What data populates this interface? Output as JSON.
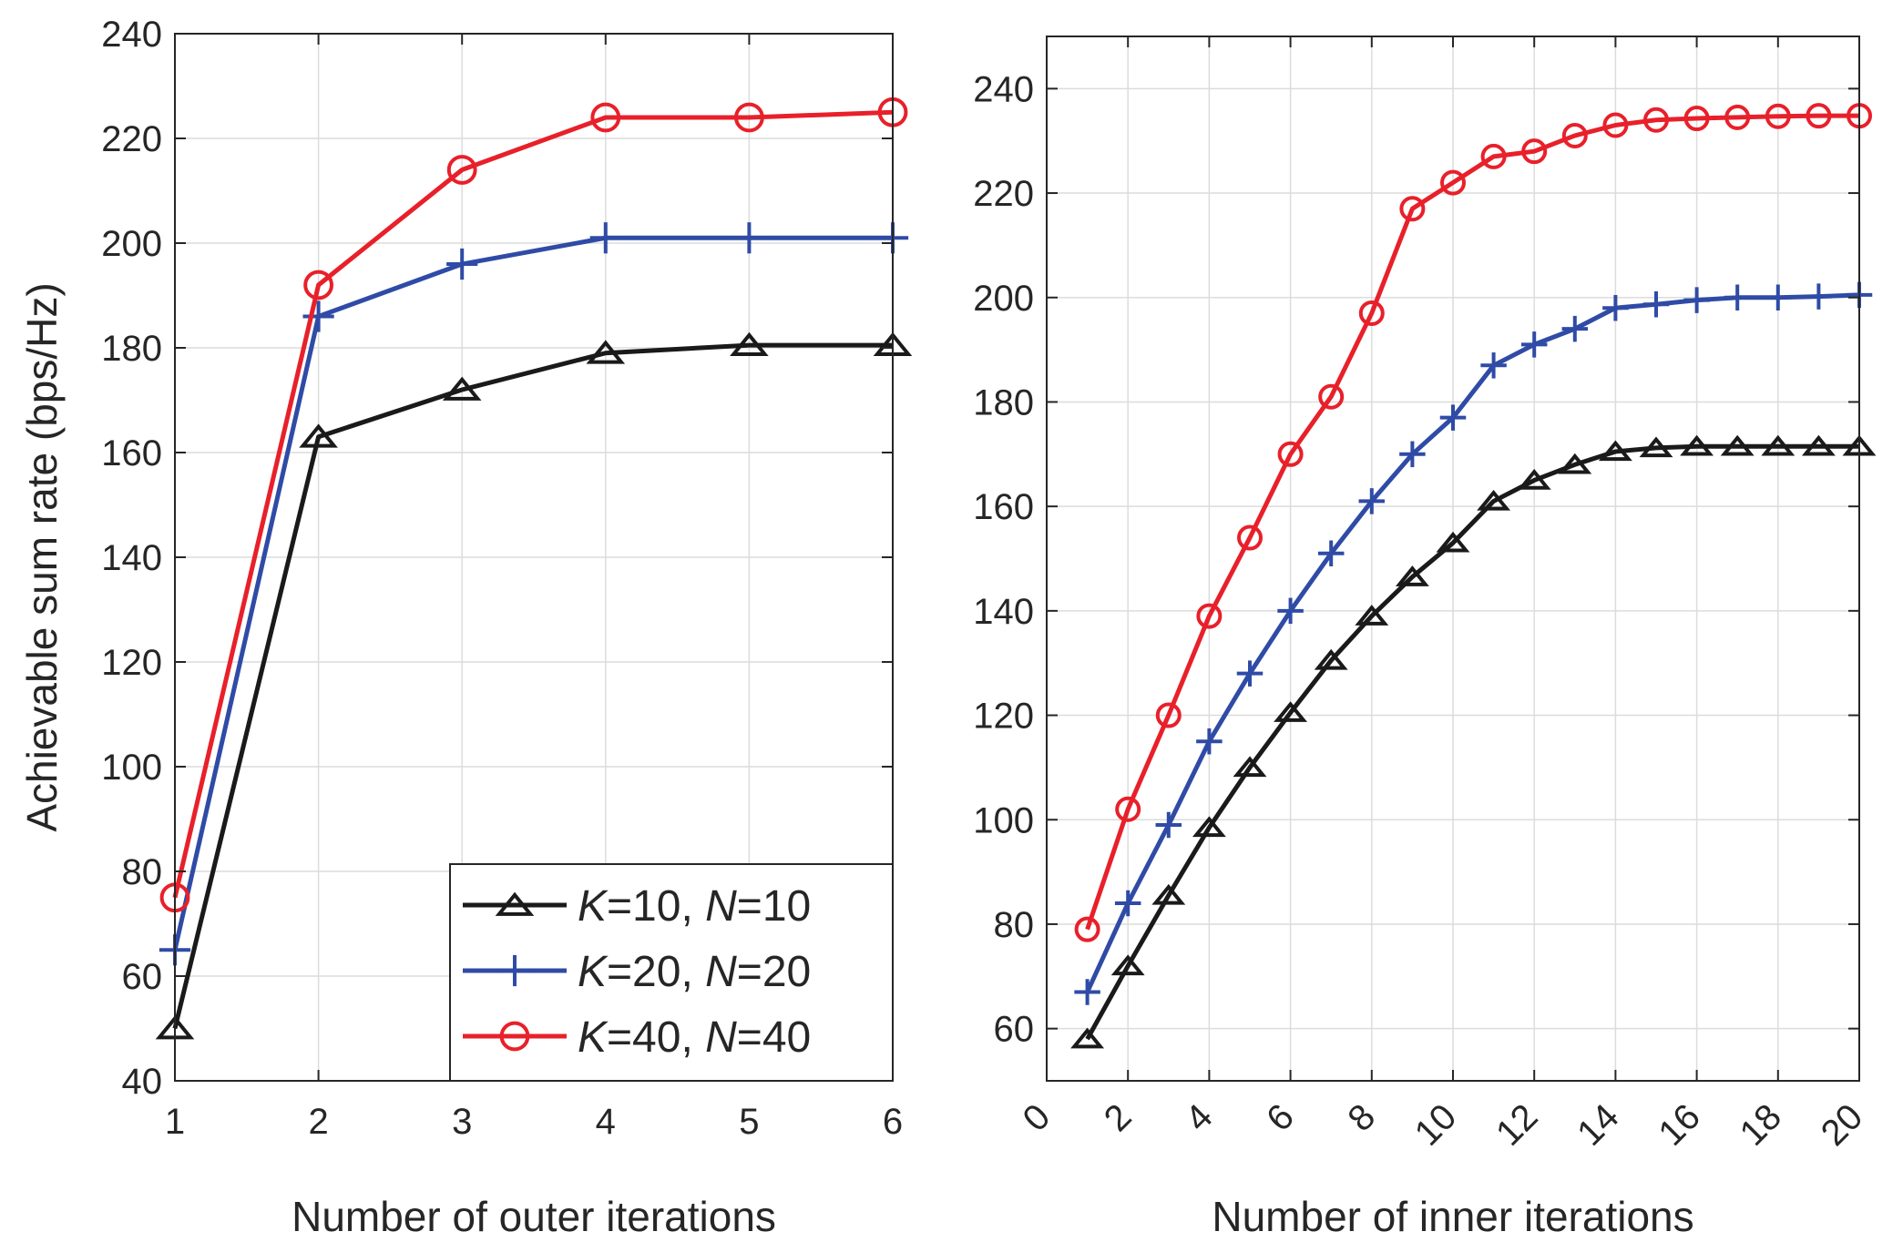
{
  "chart_data": [
    {
      "type": "line",
      "xlabel": "Number of outer iterations",
      "ylabel": "Achievable sum rate (bps/Hz)",
      "xlim": [
        1,
        6
      ],
      "ylim": [
        40,
        240
      ],
      "xticks": [
        1,
        2,
        3,
        4,
        5,
        6
      ],
      "xtick_labels": [
        "1",
        "2",
        "3",
        "4",
        "5",
        "6"
      ],
      "yticks": [
        40,
        60,
        80,
        100,
        120,
        140,
        160,
        180,
        200,
        220,
        240
      ],
      "ytick_labels": [
        "40",
        "60",
        "80",
        "100",
        "120",
        "140",
        "160",
        "180",
        "200",
        "220",
        "240"
      ],
      "grid": true,
      "legend_position": "bottom-right",
      "x": [
        1,
        2,
        3,
        4,
        5,
        6
      ],
      "series": [
        {
          "name": "K=10, N=10",
          "k": "K",
          "k_val": "=10,",
          "n": "N",
          "n_val": "=10",
          "color": "#1a1a1a",
          "marker": "triangle",
          "values": [
            50,
            163,
            172,
            179,
            180.5,
            180.5
          ]
        },
        {
          "name": "K=20, N=20",
          "k": "K",
          "k_val": "=20,",
          "n": "N",
          "n_val": "=20",
          "color": "#2f4ba6",
          "marker": "plus",
          "values": [
            65,
            186,
            196,
            201,
            201,
            201
          ]
        },
        {
          "name": "K=40, N=40",
          "k": "K",
          "k_val": "=40,",
          "n": "N",
          "n_val": "=40",
          "color": "#e8202a",
          "marker": "circle",
          "values": [
            75,
            192,
            214,
            224,
            224,
            225
          ]
        }
      ]
    },
    {
      "type": "line",
      "xlabel": "Number of inner iterations",
      "ylabel": "",
      "xlim": [
        0,
        20
      ],
      "ylim": [
        50,
        250
      ],
      "xticks": [
        0,
        2,
        4,
        6,
        8,
        10,
        12,
        14,
        16,
        18,
        20
      ],
      "xtick_labels": [
        "0",
        "2",
        "4",
        "6",
        "8",
        "10",
        "12",
        "14",
        "16",
        "18",
        "20"
      ],
      "yticks": [
        60,
        80,
        100,
        120,
        140,
        160,
        180,
        200,
        220,
        240
      ],
      "ytick_labels": [
        "60",
        "80",
        "100",
        "120",
        "140",
        "160",
        "180",
        "200",
        "220",
        "240"
      ],
      "grid": true,
      "x": [
        1,
        2,
        3,
        4,
        5,
        6,
        7,
        8,
        9,
        10,
        11,
        12,
        13,
        14,
        15,
        16,
        17,
        18,
        19,
        20
      ],
      "series": [
        {
          "name": "K=10, N=10",
          "color": "#1a1a1a",
          "marker": "triangle",
          "values": [
            58,
            72,
            85.5,
            98.5,
            110,
            120.5,
            130.5,
            139,
            146.5,
            153,
            161,
            165,
            168,
            170.5,
            171.2,
            171.5,
            171.5,
            171.5,
            171.5,
            171.5
          ]
        },
        {
          "name": "K=20, N=20",
          "color": "#2f4ba6",
          "marker": "plus",
          "values": [
            67,
            84,
            99,
            115,
            128,
            140,
            151,
            161,
            170,
            177,
            187,
            191,
            194,
            198,
            198.7,
            199.5,
            200,
            200,
            200.2,
            200.5
          ]
        },
        {
          "name": "K=40, N=40",
          "color": "#e8202a",
          "marker": "circle",
          "values": [
            79,
            102,
            120,
            139,
            154,
            170,
            181,
            197,
            217,
            222,
            227,
            228,
            231,
            233,
            234,
            234.3,
            234.5,
            234.7,
            234.8,
            234.8
          ]
        }
      ]
    }
  ]
}
